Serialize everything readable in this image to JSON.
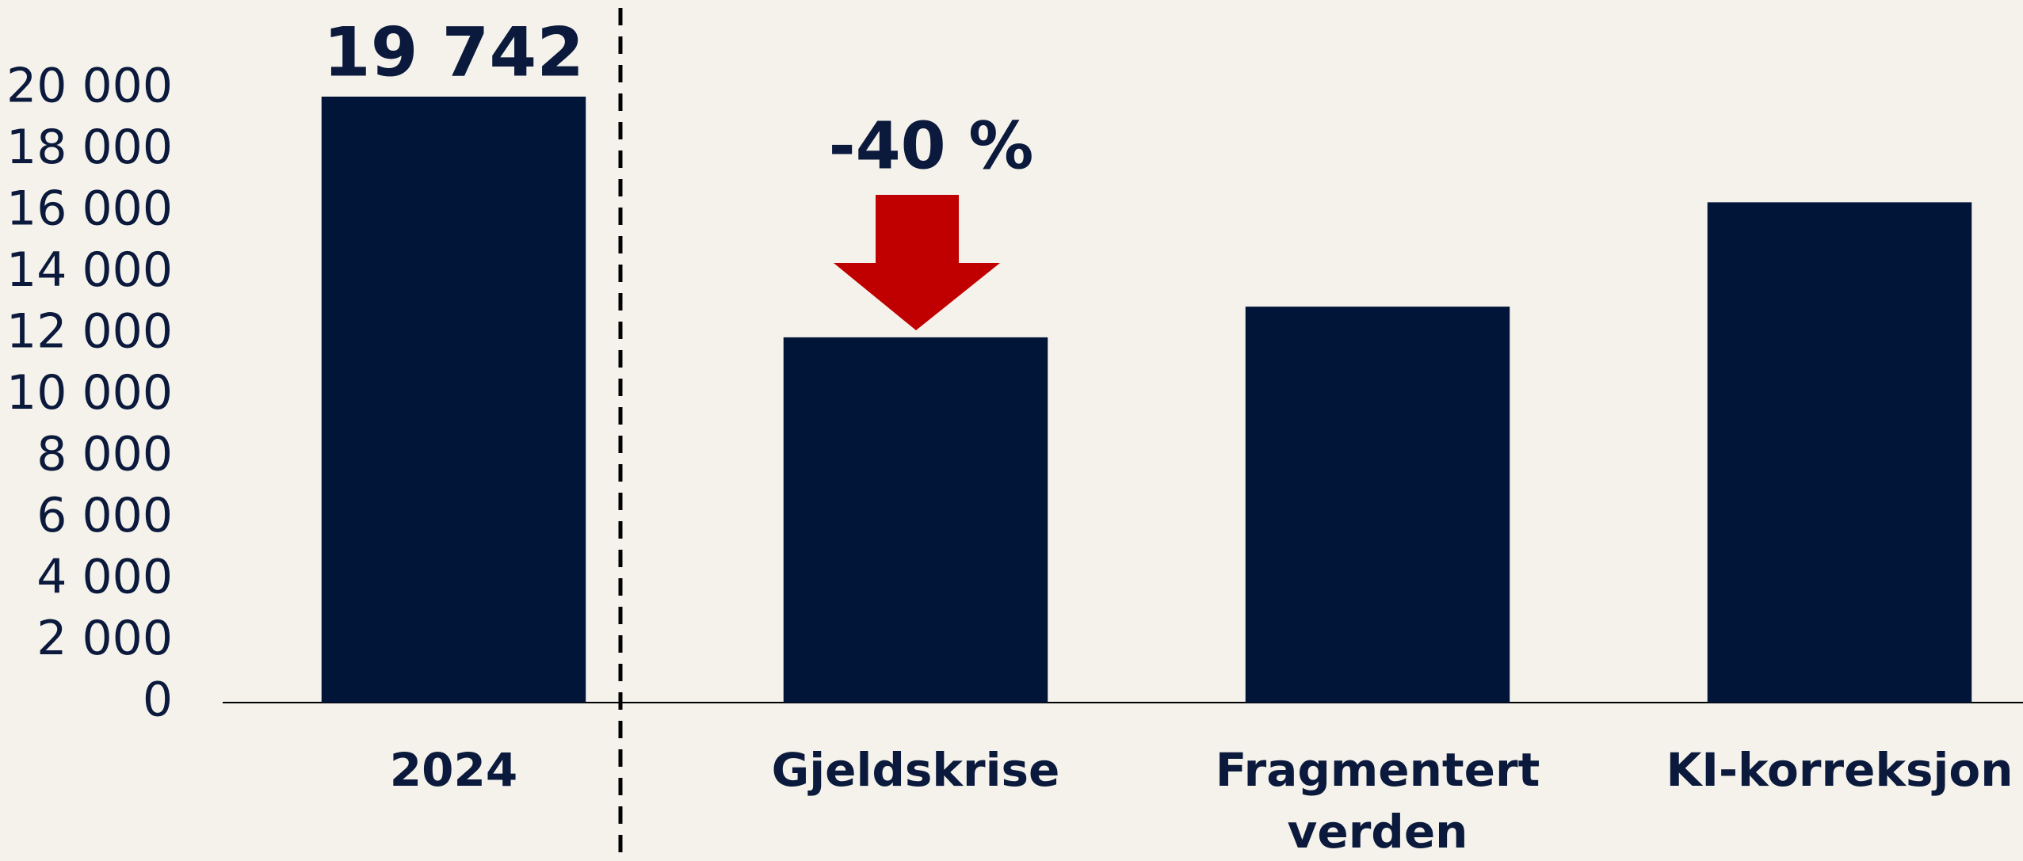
{
  "chart_data": {
    "type": "bar",
    "categories": [
      "2024",
      "Gjeldskrise",
      "Fragmentert verden",
      "KI-korreksjon"
    ],
    "values": [
      19742,
      11900,
      12900,
      16300
    ],
    "value_labels": [
      "19 742",
      null,
      null,
      null
    ],
    "color": "#001538",
    "annotation": "-40 %",
    "ylim": [
      0,
      20000
    ],
    "yticks": [
      0,
      {
        "value": 2000,
        "label": "2 000"
      },
      {
        "value": 4000,
        "label": "4 000"
      },
      {
        "value": 6000,
        "label": "6 000"
      },
      {
        "value": 8000,
        "label": "8 000"
      },
      {
        "value": 10000,
        "label": "10 000"
      },
      {
        "value": 12000,
        "label": "12 000"
      },
      {
        "value": 14000,
        "label": "14 000"
      },
      {
        "value": 16000,
        "label": "16 000"
      },
      {
        "value": 18000,
        "label": "18 000"
      },
      {
        "value": 20000,
        "label": "20 000"
      }
    ],
    "grid": false
  }
}
